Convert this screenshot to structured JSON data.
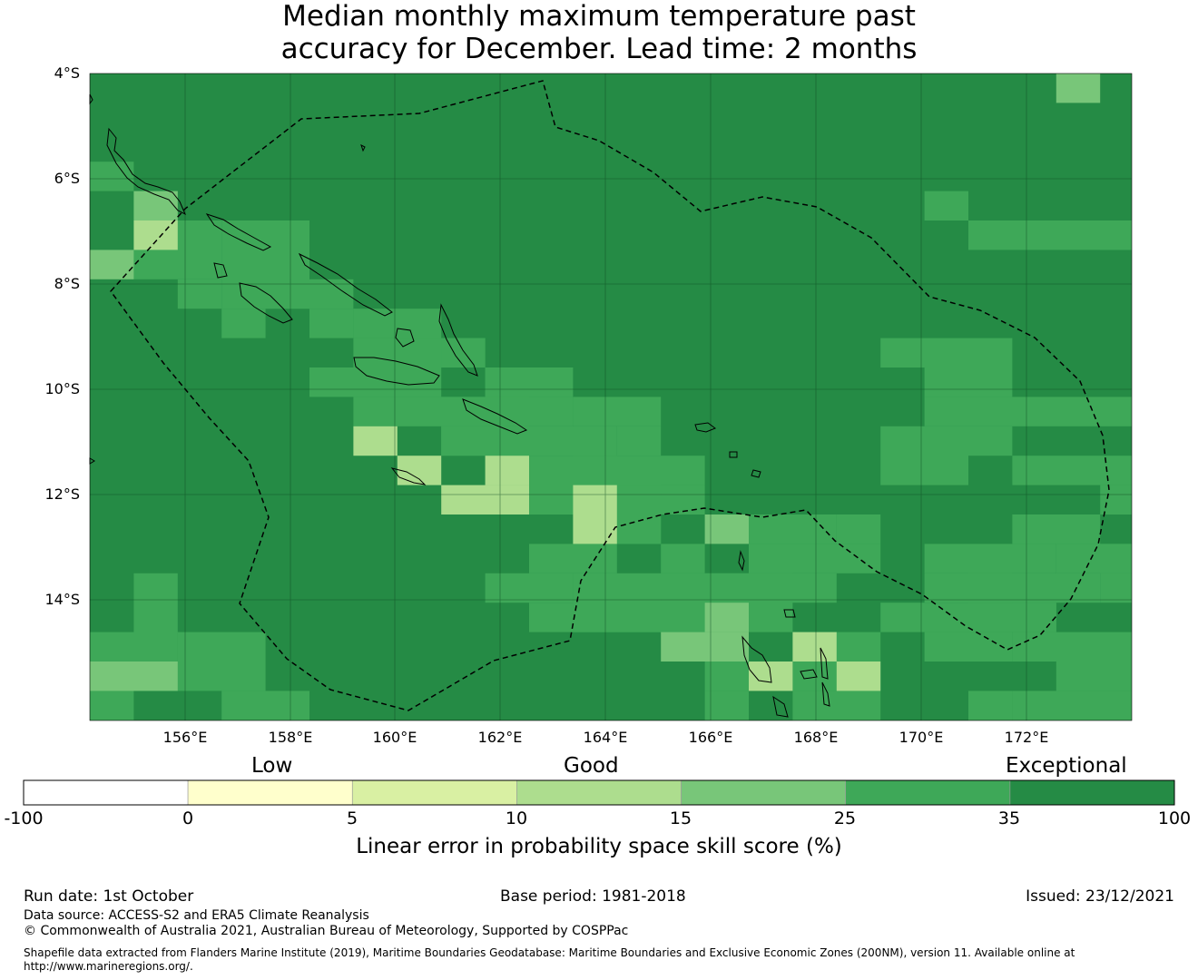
{
  "title": {
    "line1": "Median monthly maximum temperature past",
    "line2": "accuracy for December. Lead time: 2 months"
  },
  "map": {
    "lat_labels": [
      "4°S",
      "6°S",
      "8°S",
      "10°S",
      "12°S",
      "14°S"
    ],
    "lon_labels": [
      "156°E",
      "158°E",
      "160°E",
      "162°E",
      "164°E",
      "166°E",
      "168°E",
      "170°E",
      "172°E"
    ],
    "base_color": "#258b45",
    "layers": {
      "C25": "#3ea858",
      "C15": "#78c679",
      "C10": "#addd8e"
    }
  },
  "colorbar": {
    "categories": [
      "Low",
      "Good",
      "Exceptional"
    ],
    "ticks": [
      "-100",
      "0",
      "5",
      "10",
      "15",
      "25",
      "35",
      "100"
    ],
    "colors": [
      "#ffffff",
      "#ffffcc",
      "#d9f0a3",
      "#addd8e",
      "#78c679",
      "#3ea858",
      "#258b45"
    ],
    "title": "Linear error in probability space skill score (%)"
  },
  "footer": {
    "run_date": "Run date: 1st October",
    "base_period": "Base period: 1981-2018",
    "issued": "Issued: 23/12/2021",
    "data_source": "Data source: ACCESS-S2 and ERA5 Climate Reanalysis",
    "copyright": "© Commonwealth of Australia 2021, Australian Bureau of Meteorology, Supported by COSPPac",
    "shapefile_line1": "Shapefile data extracted from Flanders Marine Institute (2019), Maritime Boundaries Geodatabase: Maritime Boundaries and Exclusive Economic Zones (200NM), version 11. Available online at",
    "shapefile_line2": "http://www.marineregions.org/."
  }
}
